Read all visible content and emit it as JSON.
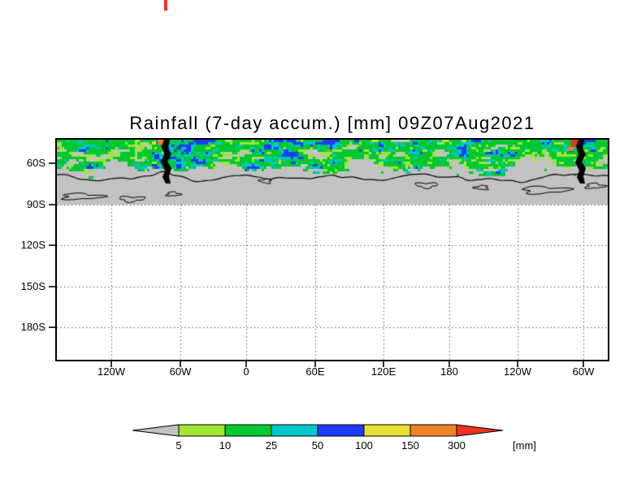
{
  "chart_data": {
    "type": "heatmap",
    "title": "Rainfall (7-day accum.) [mm] 09Z07Aug2021",
    "x_axis": {
      "tick_labels": [
        "120W",
        "60W",
        "0",
        "60E",
        "120E",
        "180",
        "120W",
        "60W"
      ]
    },
    "y_axis": {
      "tick_labels": [
        "60S",
        "90S",
        "120S",
        "150S",
        "180S"
      ]
    },
    "colorbar": {
      "levels": [
        "5",
        "10",
        "25",
        "50",
        "100",
        "150",
        "300"
      ],
      "unit": "[mm]",
      "below_color": "#c2c2c2",
      "bin_colors": [
        "#a0e632",
        "#00c832",
        "#00c8c8",
        "#1e3cff",
        "#e6e032",
        "#f08228"
      ],
      "above_color": "#eb3223"
    },
    "map": {
      "land_color": "#c2c2c2",
      "coastline_color": "#000000",
      "field_description": "Speckled 7-day accumulated rainfall band (mostly green with gray, yellow-green, cyan and blue patches, rare yellow/orange/red maxima near the Antarctic Peninsula) across the top of the map north of about 62S; uniform gray below-5mm region over Antarctica down to the 90S line; blank white with dotted graticule south of 90S."
    }
  }
}
